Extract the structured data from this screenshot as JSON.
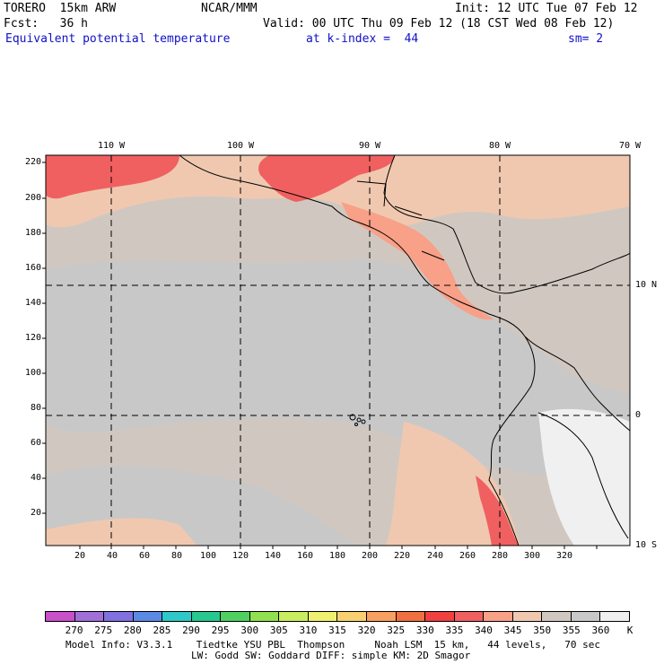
{
  "header": {
    "model": "TORERO  15km ARW",
    "org": "NCAR/MMM",
    "init": "Init: 12 UTC Tue 07 Feb 12",
    "fcst": "Fcst:   36 h",
    "valid": "Valid: 00 UTC Thu 09 Feb 12 (18 CST Wed 08 Feb 12)",
    "field": "Equivalent potential temperature",
    "level": "at k-index =  44",
    "smooth": "sm= 2"
  },
  "map": {
    "lon_labels": [
      "110 W",
      "100 W",
      "90 W",
      "80 W",
      "70 W"
    ],
    "lat_labels": [
      "10 N",
      "0",
      "10 S"
    ],
    "x_ticks": [
      "20",
      "40",
      "60",
      "80",
      "100",
      "120",
      "140",
      "160",
      "180",
      "200",
      "220",
      "240",
      "260",
      "280",
      "300",
      "320"
    ],
    "y_ticks": [
      "220",
      "200",
      "180",
      "160",
      "140",
      "120",
      "100",
      "80",
      "60",
      "40",
      "20"
    ]
  },
  "colorbar": {
    "labels": [
      "270",
      "275",
      "280",
      "285",
      "290",
      "295",
      "300",
      "305",
      "310",
      "315",
      "320",
      "325",
      "330",
      "335",
      "340",
      "345",
      "350",
      "355",
      "360"
    ],
    "unit": "K",
    "colors": [
      "#c850c8",
      "#a070d8",
      "#8070e0",
      "#5a8ae6",
      "#2ec8c8",
      "#28c890",
      "#50d060",
      "#90e050",
      "#c8ee60",
      "#f0f070",
      "#f8d070",
      "#f8a060",
      "#f07040",
      "#f04040",
      "#f06060",
      "#f8a088",
      "#f0c8b0",
      "#d0c8c0",
      "#c8c8c8",
      "#f0f0f0"
    ]
  },
  "footer": {
    "line1": "Model Info: V3.3.1    Tiedtke YSU PBL  Thompson     Noah LSM  15 km,   44 levels,   70 sec",
    "line2": "LW: Godd SW: Goddard DIFF: simple KM: 2D Smagor"
  }
}
